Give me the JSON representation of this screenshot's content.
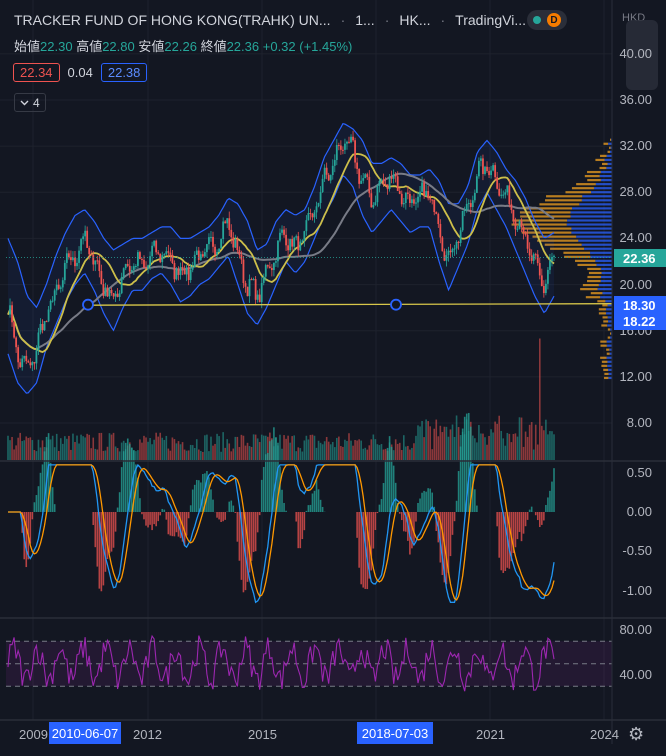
{
  "header": {
    "symbol": "TRACKER FUND OF HONG KONG(TRAHK) UN...",
    "interval": "1...",
    "exchange": "HK...",
    "source": "TradingVi...",
    "status_badge": "D",
    "currency": "HKD"
  },
  "ohlc": {
    "open_label": "始値",
    "open": "22.30",
    "high_label": "高値",
    "high": "22.80",
    "low_label": "安値",
    "low": "22.26",
    "close_label": "終値",
    "close": "22.36",
    "change": "+0.32 (+1.45%)"
  },
  "price_boxes": {
    "bid": "22.34",
    "spread": "0.04",
    "ask": "22.38"
  },
  "indicator_toggle": {
    "count": "4",
    "icon": "chevron-down-icon"
  },
  "price_axis": {
    "ticks": [
      "40.00",
      "36.00",
      "32.00",
      "28.00",
      "24.00",
      "20.00",
      "16.00",
      "12.00",
      "8.00"
    ],
    "tags": [
      {
        "value": "22.36",
        "color": "#26a69a"
      },
      {
        "value": "18.30",
        "color": "#2962ff"
      },
      {
        "value": "18.22",
        "color": "#2962ff"
      }
    ]
  },
  "macd_axis": {
    "ticks": [
      "0.50",
      "0.00",
      "-0.50",
      "-1.00"
    ]
  },
  "rsi_axis": {
    "ticks": [
      "80.00",
      "40.00"
    ]
  },
  "time_axis": {
    "labels": [
      "2009",
      "2012",
      "2015",
      "2021",
      "2024"
    ],
    "highlights": [
      "2010-06-07",
      "2018-07-03"
    ]
  },
  "colors": {
    "up": "#26a69a",
    "down": "#ef5350",
    "bb": "#2962ff",
    "ma_fast": "#cdbf4a",
    "ma_slow": "#787b86",
    "trendline": "#d8c74a",
    "macd": "#2196f3",
    "signal": "#ff9800",
    "rsi": "#9c27b0",
    "vp_up": "#f0a020",
    "vp_down": "#2962ff"
  },
  "chart_data": {
    "type": "candlestick",
    "range": {
      "start": "2009",
      "end": "2024"
    },
    "close_series": [
      18.0,
      14.0,
      12.5,
      14.5,
      17.5,
      19.0,
      21.5,
      22.5,
      24.0,
      22.0,
      20.0,
      18.5,
      21.0,
      22.0,
      21.5,
      22.5,
      23.0,
      22.0,
      21.0,
      21.5,
      22.5,
      23.0,
      24.0,
      25.5,
      22.5,
      20.0,
      19.0,
      21.0,
      23.0,
      24.5,
      23.0,
      24.5,
      26.5,
      29.0,
      30.5,
      32.5,
      31.5,
      29.0,
      27.5,
      28.5,
      29.5,
      28.0,
      27.0,
      27.5,
      28.0,
      25.0,
      22.0,
      24.5,
      26.5,
      29.5,
      30.5,
      29.0,
      27.5,
      26.0,
      24.0,
      21.5,
      20.0,
      22.36
    ],
    "bollinger_upper": [
      24.0,
      22.0,
      19.0,
      18.0,
      20.0,
      22.5,
      24.5,
      26.0,
      26.5,
      25.5,
      24.0,
      23.0,
      23.5,
      24.0,
      24.0,
      24.5,
      25.0,
      25.0,
      24.0,
      24.0,
      24.5,
      25.0,
      26.0,
      27.5,
      27.0,
      25.5,
      23.0,
      23.5,
      25.5,
      26.5,
      26.0,
      26.5,
      28.5,
      31.0,
      32.5,
      34.0,
      33.5,
      32.5,
      30.5,
      30.5,
      31.0,
      30.5,
      29.5,
      29.5,
      30.0,
      29.0,
      27.0,
      27.0,
      28.5,
      31.5,
      32.5,
      31.5,
      30.0,
      29.0,
      27.5,
      25.5,
      24.0,
      24.5
    ],
    "bollinger_lower": [
      14.0,
      11.5,
      10.5,
      11.5,
      14.5,
      16.5,
      18.5,
      20.0,
      21.0,
      19.5,
      17.5,
      16.0,
      18.0,
      19.5,
      19.5,
      20.5,
      21.0,
      20.0,
      18.5,
      19.0,
      20.0,
      20.5,
      21.5,
      22.5,
      20.0,
      17.5,
      16.5,
      18.0,
      20.0,
      22.0,
      21.0,
      22.0,
      24.0,
      26.0,
      27.5,
      29.5,
      28.5,
      26.0,
      24.5,
      25.5,
      26.5,
      25.5,
      24.5,
      25.0,
      25.0,
      22.0,
      19.5,
      21.5,
      23.5,
      26.5,
      28.0,
      26.5,
      25.0,
      23.0,
      21.0,
      19.0,
      17.5,
      19.0
    ],
    "support_level": 18.3,
    "macd_range": [
      -1.15,
      0.6
    ],
    "rsi_range": [
      20,
      90
    ],
    "rsi_bands": [
      70,
      50,
      30
    ]
  }
}
